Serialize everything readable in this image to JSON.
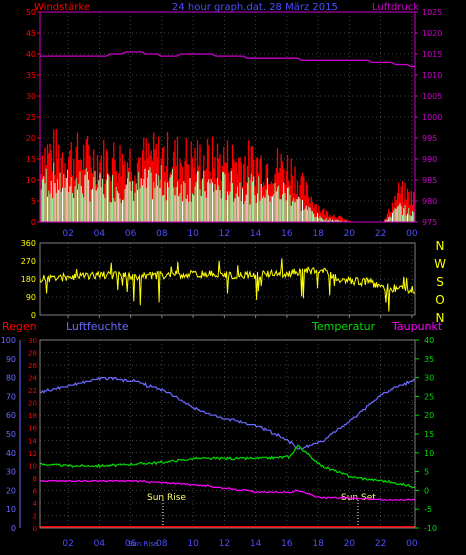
{
  "top_panel": {
    "title": "24 hour graph.dat. 28 März 2015",
    "left_label": "Windstärke",
    "right_label": "Luftdruck",
    "left_ticks": [
      "0",
      "5",
      "10",
      "15",
      "20",
      "25",
      "30",
      "35",
      "40",
      "45",
      "50"
    ],
    "right_ticks": [
      "975",
      "980",
      "985",
      "990",
      "995",
      "1000",
      "1005",
      "1010",
      "1015",
      "1020",
      "1025"
    ],
    "x_ticks": [
      "02",
      "04",
      "06",
      "08",
      "10",
      "12",
      "14",
      "16",
      "18",
      "20",
      "22",
      "00"
    ]
  },
  "mid_panel": {
    "left_ticks": [
      "0",
      "90",
      "180",
      "270",
      "360"
    ],
    "direction_letters": [
      "N",
      "W",
      "S",
      "O",
      "N"
    ],
    "x_ticks": [
      "02",
      "04",
      "06",
      "08",
      "10",
      "12",
      "14",
      "16",
      "18",
      "20",
      "22",
      "00"
    ]
  },
  "bottom_panel": {
    "header_regen": "Regen",
    "header_humidity": "Luftfeuchte",
    "header_temperature": "Temperatur",
    "header_dewpoint": "Taupunkt",
    "humidity_ticks": [
      "0",
      "10",
      "20",
      "30",
      "40",
      "50",
      "60",
      "70",
      "80",
      "90",
      "100"
    ],
    "rain_ticks": [
      "0",
      "2",
      "4",
      "6",
      "8",
      "10",
      "12",
      "14",
      "16",
      "18",
      "20",
      "22",
      "24",
      "26",
      "28",
      "30"
    ],
    "temp_ticks": [
      "-10",
      "-5",
      "0",
      "5",
      "10",
      "15",
      "20",
      "25",
      "30",
      "35",
      "40"
    ],
    "x_ticks": [
      "02",
      "04",
      "06",
      "Sun Rise",
      "08",
      "10",
      "12",
      "14",
      "16",
      "18",
      "20",
      "22",
      "00"
    ],
    "sun_rise_label": "Sun Rise",
    "sun_set_label": "Sun Set"
  },
  "colors": {
    "gust": "#ff0000",
    "wind": "#ffffff",
    "wind_alt": "#90ee90",
    "pressure": "#cc00cc",
    "direction": "#ffff00",
    "humidity": "#6a6aff",
    "temperature": "#00dd00",
    "dewpoint": "#ff00ff",
    "rain": "#ff0000",
    "grid": "#808080"
  },
  "chart_data": [
    {
      "type": "bar",
      "x": [
        "00:00",
        "02:00",
        "04:00",
        "06:00",
        "08:00",
        "10:00",
        "12:00",
        "14:00",
        "16:00",
        "17:00",
        "18:00",
        "20:00",
        "22:00",
        "23:00",
        "00:00"
      ],
      "series": [
        {
          "name": "Windstärke",
          "values": [
            12,
            11,
            10,
            10,
            11,
            10,
            10,
            9,
            8,
            4,
            1,
            0,
            0,
            4,
            2
          ]
        },
        {
          "name": "Luftdruck",
          "values": [
            1014.5,
            1014.5,
            1014.5,
            1015.5,
            1014.5,
            1015,
            1014.5,
            1014,
            1014,
            1013.5,
            1013.5,
            1013.5,
            1013,
            1012.5,
            1012
          ]
        }
      ],
      "gust_values": [
        18,
        17,
        16,
        16,
        17,
        16,
        16,
        15,
        14,
        8,
        3,
        0,
        0,
        8,
        6
      ],
      "ylim": [
        0,
        50
      ],
      "ylim_right": [
        975,
        1025
      ]
    },
    {
      "type": "line",
      "x": [
        "00:00",
        "02:00",
        "04:00",
        "06:00",
        "08:00",
        "10:00",
        "12:00",
        "14:00",
        "16:00",
        "18:00",
        "19:00",
        "20:00",
        "21:00",
        "22:00",
        "23:00",
        "00:00"
      ],
      "series": [
        {
          "name": "direction",
          "values": [
            180,
            190,
            200,
            195,
            200,
            205,
            200,
            200,
            210,
            230,
            180,
            170,
            165,
            140,
            130,
            125
          ]
        }
      ],
      "ylim": [
        0,
        360
      ]
    },
    {
      "type": "line",
      "x": [
        "00:00",
        "02:00",
        "04:00",
        "06:00",
        "08:00",
        "10:00",
        "12:00",
        "14:00",
        "16:00",
        "16:30",
        "18:00",
        "20:00",
        "22:00",
        "00:00"
      ],
      "series": [
        {
          "name": "Luftfeuchte",
          "values": [
            72,
            76,
            80,
            78,
            73,
            63,
            58,
            54,
            46,
            42,
            46,
            58,
            72,
            79
          ]
        },
        {
          "name": "Temperatur",
          "values": [
            7,
            6.5,
            6.5,
            7,
            7.5,
            8.5,
            8.5,
            8.5,
            9,
            12,
            6.5,
            3.5,
            2.5,
            1
          ]
        },
        {
          "name": "Taupunkt",
          "values": [
            2.5,
            2.5,
            2.5,
            2.5,
            2,
            1.5,
            0.5,
            -0.5,
            -0.5,
            0,
            -2,
            -2,
            -2.5,
            -2.5
          ]
        },
        {
          "name": "Regen",
          "values": [
            0,
            0,
            0,
            0,
            0,
            0,
            0,
            0,
            0,
            0,
            0,
            0,
            0,
            0
          ]
        }
      ],
      "ylim_humidity": [
        0,
        100
      ],
      "ylim_temperature": [
        -10,
        40
      ],
      "ylim_rain": [
        0,
        30
      ]
    }
  ]
}
